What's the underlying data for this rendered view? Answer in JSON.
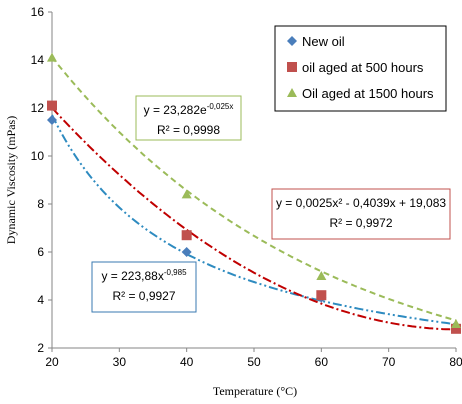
{
  "chart_data": {
    "type": "scatter",
    "xlabel": "Temperature (°C)",
    "ylabel": "Dynamic Viscosity (mPas)",
    "xlim": [
      20,
      80
    ],
    "ylim": [
      2,
      16
    ],
    "x_ticks": [
      20,
      30,
      40,
      50,
      60,
      70,
      80
    ],
    "y_ticks": [
      2,
      4,
      6,
      8,
      10,
      12,
      14,
      16
    ],
    "grid": false,
    "legend_position": "top-right",
    "series": [
      {
        "name": "New oil",
        "marker": "diamond",
        "color": "#4a7ebb",
        "trend_color": "#2e8bc0",
        "trend_style": "dash-dot-dot",
        "x": [
          20,
          40,
          60,
          80
        ],
        "y": [
          11.5,
          6.0,
          4.1,
          2.9
        ],
        "trendline": {
          "type": "power",
          "a": 223.88,
          "b": -0.985
        },
        "equation_box": {
          "eq_main": "y = 223,88x",
          "eq_sup": "-0,985",
          "r2": "R² = 0,9927",
          "border": "#3a7ab0"
        }
      },
      {
        "name": "oil aged at 500 hours",
        "marker": "square",
        "color": "#c0504d",
        "trend_color": "#c00000",
        "trend_style": "dash-dot",
        "x": [
          20,
          40,
          60,
          80
        ],
        "y": [
          12.1,
          6.7,
          4.2,
          2.8
        ],
        "trendline": {
          "type": "poly2",
          "a": 0.0025,
          "b": -0.4039,
          "c": 19.083
        },
        "equation_box": {
          "eq_main": "y = 0,0025x² - 0,4039x + 19,083",
          "eq_sup": "",
          "r2": "R² = 0,9972",
          "border": "#c0504d"
        }
      },
      {
        "name": "Oil aged at 1500 hours",
        "marker": "triangle",
        "color": "#9bbb59",
        "trend_color": "#9bbb59",
        "trend_style": "dash",
        "x": [
          20,
          40,
          60,
          80
        ],
        "y": [
          14.1,
          8.4,
          5.0,
          3.0
        ],
        "trendline": {
          "type": "exp",
          "a": 23.282,
          "b": -0.025
        },
        "equation_box": {
          "eq_main": "y = 23,282e",
          "eq_sup": "-0,025x",
          "r2": "R² = 0,9998",
          "border": "#9bbb59"
        }
      }
    ]
  }
}
